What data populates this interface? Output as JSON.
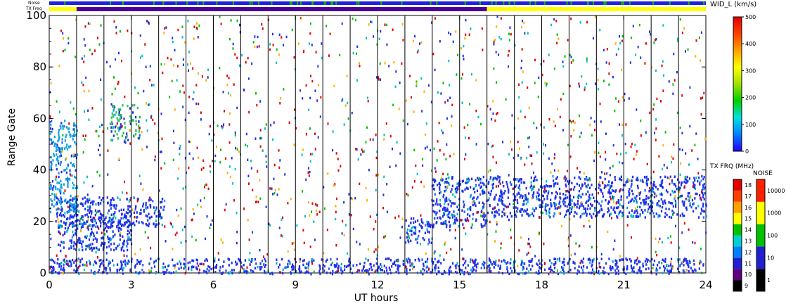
{
  "chart_data": {
    "type": "heatmap",
    "xlabel": "UT hours",
    "ylabel": "Range Gate",
    "xlim": [
      0,
      24
    ],
    "ylim": [
      0,
      100
    ],
    "x_ticks": [
      "0",
      "3",
      "6",
      "9",
      "12",
      "15",
      "18",
      "21",
      "24"
    ],
    "y_ticks": [
      "0",
      "20",
      "40",
      "60",
      "80",
      "100"
    ],
    "vertical_scan_lines_ut": [
      1,
      2,
      3,
      4,
      5,
      6,
      7,
      8,
      9,
      10,
      11,
      12,
      13,
      14,
      15,
      16,
      17,
      18,
      19,
      20,
      21,
      22,
      23
    ],
    "top_strips": {
      "noise_label": "Noise",
      "txfreq_label": "TX Freq",
      "noise_color": "#2020e0",
      "txfreq_segments": [
        {
          "start": 0,
          "end": 1,
          "color": "#ffff00"
        },
        {
          "start": 1,
          "end": 16,
          "color": "#4b0096"
        },
        {
          "start": 16,
          "end": 24,
          "color": "#ffff00"
        }
      ]
    },
    "regions": [
      {
        "name": "ground_scatter_low",
        "x": [
          0,
          24
        ],
        "y": [
          0,
          6
        ],
        "color": "#2030e8"
      },
      {
        "name": "band_a",
        "x": [
          0.2,
          4.2
        ],
        "y": [
          18,
          30
        ],
        "color": "#2030e8"
      },
      {
        "name": "band_b",
        "x": [
          0.3,
          3.0
        ],
        "y": [
          9,
          23
        ],
        "color": "#2030e8"
      },
      {
        "name": "band_c",
        "x": [
          0,
          1.0
        ],
        "y": [
          24,
          60
        ],
        "color": "#10a0e0"
      },
      {
        "name": "patch_green",
        "x": [
          2.2,
          3.3
        ],
        "y": [
          52,
          66
        ],
        "color": "#30c060"
      },
      {
        "name": "band_d",
        "x": [
          14.0,
          16.0
        ],
        "y": [
          18,
          38
        ],
        "color": "#2030e8"
      },
      {
        "name": "band_e",
        "x": [
          16.0,
          24.0
        ],
        "y": [
          22,
          38
        ],
        "color": "#2030e8"
      },
      {
        "name": "band_f",
        "x": [
          13.0,
          14.0
        ],
        "y": [
          12,
          22
        ],
        "color": "#2030e8"
      }
    ],
    "colorbars": [
      {
        "label": "WID_L (km/s)",
        "ticks": [
          "0",
          "100",
          "200",
          "300",
          "400",
          "500"
        ],
        "stops": [
          "#2000ff",
          "#0080ff",
          "#00e0e0",
          "#00d000",
          "#a0e000",
          "#ffff00",
          "#ffa000",
          "#ff4000",
          "#e00000"
        ]
      },
      {
        "label": "TX FRQ (MHz)",
        "ticks": [
          "9",
          "10",
          "11",
          "12",
          "13",
          "14",
          "15",
          "16",
          "17",
          "18"
        ],
        "colors": [
          "#000000",
          "#600080",
          "#2020d0",
          "#0080ff",
          "#00d0d0",
          "#00c000",
          "#ffff00",
          "#ffa000",
          "#ff4000",
          "#e00000"
        ]
      },
      {
        "label": "NOISE",
        "ticks": [
          "1",
          "10",
          "100",
          "1000",
          "10000"
        ],
        "colors": [
          "#000000",
          "#2020d0",
          "#00c000",
          "#ffff00",
          "#ff2000"
        ]
      }
    ]
  }
}
